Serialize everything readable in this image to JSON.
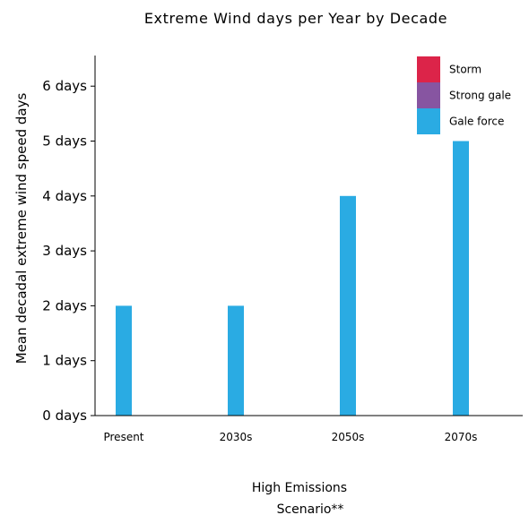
{
  "chart_data": {
    "type": "bar",
    "stacked": true,
    "title": "Extreme Wind days per Year by Decade",
    "ylabel": "Mean decadal extreme wind speed days",
    "xlabel_lines": [
      "High Emissions",
      "Scenario**"
    ],
    "categories": [
      "Present",
      "2030s",
      "2050s",
      "2070s"
    ],
    "ylim": [
      0,
      6.6
    ],
    "yticks": [
      0,
      1,
      2,
      3,
      4,
      5,
      6
    ],
    "ytick_labels": [
      "0 days",
      "1 days",
      "2 days",
      "3 days",
      "4 days",
      "5 days",
      "6 days"
    ],
    "series": [
      {
        "name": "Gale force",
        "color": "#2AABE3",
        "values": [
          2,
          2,
          4,
          5
        ]
      },
      {
        "name": "Strong gale",
        "color": "#8755A1",
        "values": [
          0,
          0,
          0,
          0
        ]
      },
      {
        "name": "Storm",
        "color": "#DC2449",
        "values": [
          0,
          0,
          0,
          0
        ]
      }
    ],
    "legend": {
      "placement": "top-right",
      "entries": [
        {
          "label": "Storm",
          "color": "#DC2449"
        },
        {
          "label": "Strong gale",
          "color": "#8755A1"
        },
        {
          "label": "Gale force",
          "color": "#2AABE3"
        }
      ]
    },
    "grid": false
  }
}
